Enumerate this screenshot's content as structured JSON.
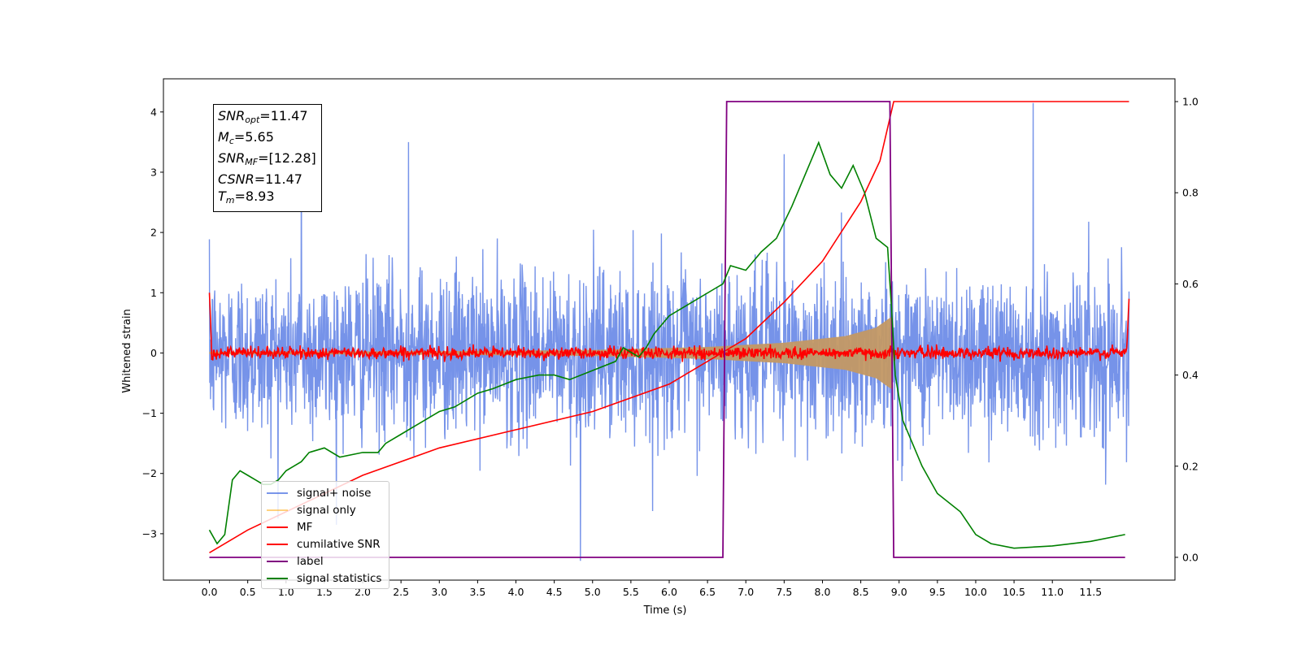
{
  "chart_data": {
    "type": "line",
    "xlabel": "Time (s)",
    "ylabel": "Whitened strain",
    "x_range": [
      0.0,
      12.0
    ],
    "xlim": [
      -0.6,
      12.6
    ],
    "ylim_left": [
      -3.77,
      4.55
    ],
    "ylim_right": [
      -0.05,
      1.05
    ],
    "x_ticks": [
      "0.0",
      "0.5",
      "1.0",
      "1.5",
      "2.0",
      "2.5",
      "3.0",
      "3.5",
      "4.0",
      "4.5",
      "5.0",
      "5.5",
      "6.0",
      "6.5",
      "7.0",
      "7.5",
      "8.0",
      "8.5",
      "9.0",
      "9.5",
      "10.0",
      "10.5",
      "11.0",
      "11.5"
    ],
    "y_ticks_left": [
      -3,
      -2,
      -1,
      0,
      1,
      2,
      3,
      4
    ],
    "y_tick_labels_left": [
      "−3",
      "−2",
      "−1",
      "0",
      "1",
      "2",
      "3",
      "4"
    ],
    "y_ticks_right": [
      "0.0",
      "0.2",
      "0.4",
      "0.6",
      "0.8",
      "1.0"
    ],
    "annotation": {
      "snr_opt": "11.47",
      "mc": "5.65",
      "snr_mf": "[12.28]",
      "csnr": "11.47",
      "tm": "8.93"
    },
    "series": [
      {
        "name": "signal+ noise",
        "color": "#4169e1",
        "axis": "left",
        "noise_std": 0.68,
        "spikes": [
          [
            4.84,
            -3.45
          ],
          [
            10.75,
            4.15
          ],
          [
            1.2,
            3.35
          ],
          [
            2.6,
            3.5
          ],
          [
            7.5,
            3.3
          ]
        ]
      },
      {
        "name": "signal only",
        "color": "#ffa500",
        "axis": "left",
        "envelope": [
          [
            0.0,
            0.02
          ],
          [
            3.0,
            0.03
          ],
          [
            5.0,
            0.05
          ],
          [
            6.5,
            0.1
          ],
          [
            7.5,
            0.17
          ],
          [
            8.3,
            0.28
          ],
          [
            8.7,
            0.42
          ],
          [
            8.9,
            0.6
          ],
          [
            8.93,
            0.0
          ],
          [
            12.0,
            0.0
          ]
        ]
      },
      {
        "name": "MF",
        "color": "#ff0000",
        "axis": "left",
        "noise_std": 0.05,
        "edges": [
          [
            0.0,
            1.0
          ],
          [
            12.0,
            0.9
          ]
        ]
      },
      {
        "name": "cumilative SNR",
        "color": "#ff0000",
        "axis": "right",
        "points": [
          [
            0.0,
            0.01
          ],
          [
            0.5,
            0.06
          ],
          [
            1.0,
            0.1
          ],
          [
            2.0,
            0.18
          ],
          [
            3.0,
            0.24
          ],
          [
            4.0,
            0.28
          ],
          [
            5.0,
            0.32
          ],
          [
            6.0,
            0.38
          ],
          [
            7.0,
            0.48
          ],
          [
            7.5,
            0.56
          ],
          [
            8.0,
            0.65
          ],
          [
            8.5,
            0.78
          ],
          [
            8.75,
            0.87
          ],
          [
            8.93,
            1.0
          ],
          [
            12.0,
            1.0
          ]
        ]
      },
      {
        "name": "label",
        "color": "#800080",
        "axis": "right",
        "points": [
          [
            0.0,
            0.0
          ],
          [
            6.7,
            0.0
          ],
          [
            6.75,
            1.0
          ],
          [
            8.88,
            1.0
          ],
          [
            8.93,
            0.0
          ],
          [
            11.95,
            0.0
          ]
        ]
      },
      {
        "name": "signal statistics",
        "color": "#008000",
        "axis": "right",
        "points": [
          [
            0.0,
            0.06
          ],
          [
            0.1,
            0.03
          ],
          [
            0.2,
            0.05
          ],
          [
            0.3,
            0.17
          ],
          [
            0.4,
            0.19
          ],
          [
            0.5,
            0.18
          ],
          [
            0.6,
            0.17
          ],
          [
            0.7,
            0.16
          ],
          [
            0.8,
            0.16
          ],
          [
            0.9,
            0.17
          ],
          [
            1.0,
            0.19
          ],
          [
            1.1,
            0.2
          ],
          [
            1.2,
            0.21
          ],
          [
            1.3,
            0.23
          ],
          [
            1.5,
            0.24
          ],
          [
            1.7,
            0.22
          ],
          [
            2.0,
            0.23
          ],
          [
            2.2,
            0.23
          ],
          [
            2.3,
            0.25
          ],
          [
            2.5,
            0.27
          ],
          [
            2.7,
            0.29
          ],
          [
            3.0,
            0.32
          ],
          [
            3.2,
            0.33
          ],
          [
            3.5,
            0.36
          ],
          [
            3.7,
            0.37
          ],
          [
            4.0,
            0.39
          ],
          [
            4.3,
            0.4
          ],
          [
            4.5,
            0.4
          ],
          [
            4.7,
            0.39
          ],
          [
            5.0,
            0.41
          ],
          [
            5.3,
            0.43
          ],
          [
            5.4,
            0.46
          ],
          [
            5.6,
            0.44
          ],
          [
            5.7,
            0.46
          ],
          [
            5.8,
            0.49
          ],
          [
            6.0,
            0.53
          ],
          [
            6.3,
            0.56
          ],
          [
            6.6,
            0.59
          ],
          [
            6.7,
            0.6
          ],
          [
            6.8,
            0.64
          ],
          [
            7.0,
            0.63
          ],
          [
            7.2,
            0.67
          ],
          [
            7.4,
            0.7
          ],
          [
            7.6,
            0.77
          ],
          [
            7.8,
            0.85
          ],
          [
            7.95,
            0.91
          ],
          [
            8.1,
            0.84
          ],
          [
            8.25,
            0.81
          ],
          [
            8.4,
            0.86
          ],
          [
            8.55,
            0.8
          ],
          [
            8.7,
            0.7
          ],
          [
            8.85,
            0.68
          ],
          [
            8.9,
            0.55
          ],
          [
            8.95,
            0.4
          ],
          [
            9.05,
            0.3
          ],
          [
            9.3,
            0.2
          ],
          [
            9.5,
            0.14
          ],
          [
            9.8,
            0.1
          ],
          [
            10.0,
            0.05
          ],
          [
            10.2,
            0.03
          ],
          [
            10.5,
            0.02
          ],
          [
            11.0,
            0.025
          ],
          [
            11.5,
            0.035
          ],
          [
            11.95,
            0.05
          ]
        ]
      }
    ]
  }
}
